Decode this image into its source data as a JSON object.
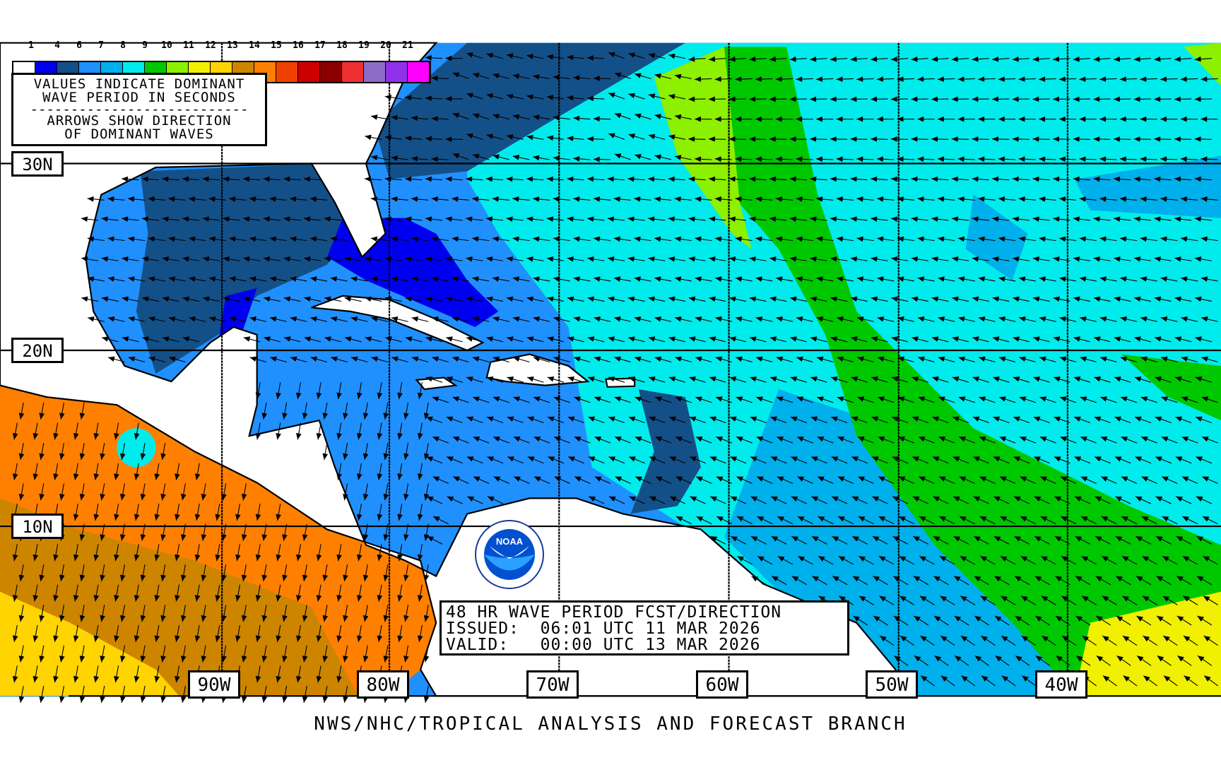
{
  "legend": {
    "labels": [
      "1",
      "4",
      "6",
      "7",
      "8",
      "9",
      "10",
      "11",
      "12",
      "13",
      "14",
      "15",
      "16",
      "17",
      "18",
      "19",
      "20",
      "21"
    ],
    "colors": [
      "#ffffff",
      "#0000f0",
      "#145088",
      "#2090ff",
      "#00b0ec",
      "#00ecec",
      "#00c800",
      "#8cf000",
      "#f0f000",
      "#ffd400",
      "#cd8500",
      "#ff8000",
      "#f04000",
      "#cd0000",
      "#8b0000",
      "#ee3030",
      "#8c6cc8",
      "#9030e8",
      "#ff00ff"
    ],
    "note_line1": "VALUES INDICATE DOMINANT",
    "note_line2": "WAVE PERIOD IN SECONDS",
    "note_dash": "---------------------------",
    "note_line3": "ARROWS SHOW DIRECTION",
    "note_line4": "OF DOMINANT WAVES"
  },
  "latitudes": [
    "30N",
    "20N",
    "10N"
  ],
  "longitudes": [
    "90W",
    "80W",
    "70W",
    "60W",
    "50W",
    "40W"
  ],
  "title": {
    "line1": "48 HR WAVE PERIOD FCST/DIRECTION",
    "line2": "ISSUED:  06:01 UTC 11 MAR 2026",
    "line3": "VALID:   00:00 UTC 13 MAR 2026"
  },
  "footer": "NWS/NHC/TROPICAL ANALYSIS AND FORECAST BRANCH",
  "logo": {
    "text": "NOAA",
    "ring_text": "NATIONAL OCEANIC AND ATMOSPHERIC ADMINISTRATION · U.S. DEPARTMENT OF COMMERCE"
  },
  "arrow_icon": "wave-direction-arrow"
}
